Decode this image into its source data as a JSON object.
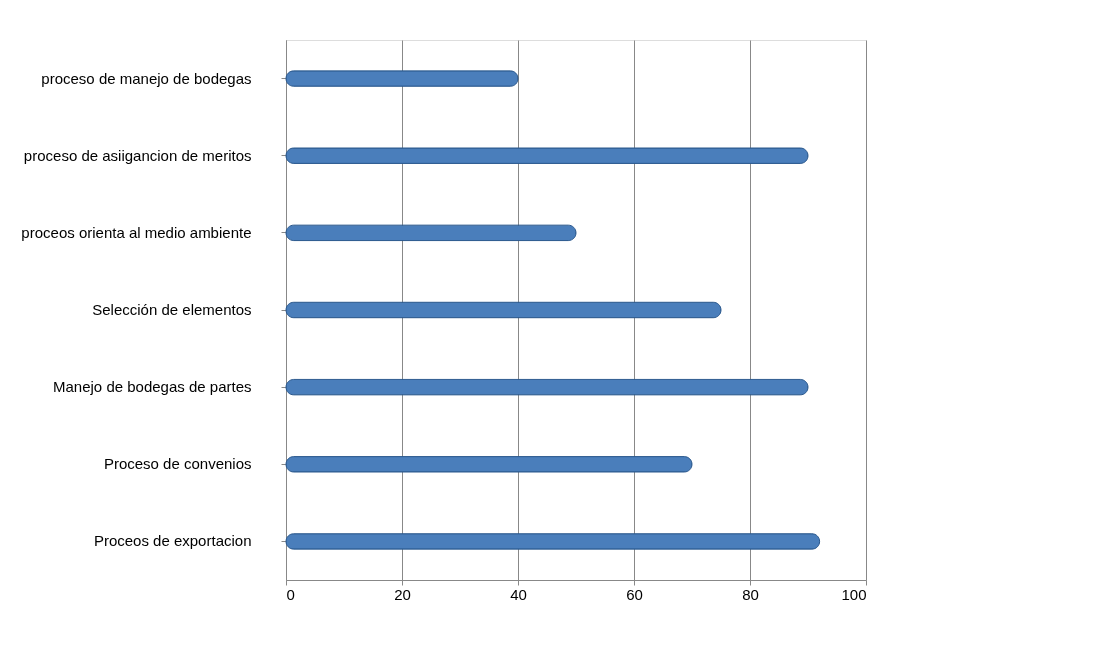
{
  "chart_data": {
    "type": "bar",
    "orientation": "horizontal",
    "categories": [
      "proceso de manejo de bodegas",
      "proceso de asiigancion de meritos",
      "proceos orienta al medio ambiente",
      "Selección de elementos",
      "Manejo de bodegas de partes",
      "Proceso de convenios",
      "Proceos de exportacion"
    ],
    "values": [
      40,
      90,
      50,
      75,
      90,
      70,
      92
    ],
    "color": "#4a7ebb",
    "xlim": [
      0,
      100
    ],
    "xticks": [
      0,
      20,
      40,
      60,
      80,
      100
    ],
    "grid": "x"
  }
}
